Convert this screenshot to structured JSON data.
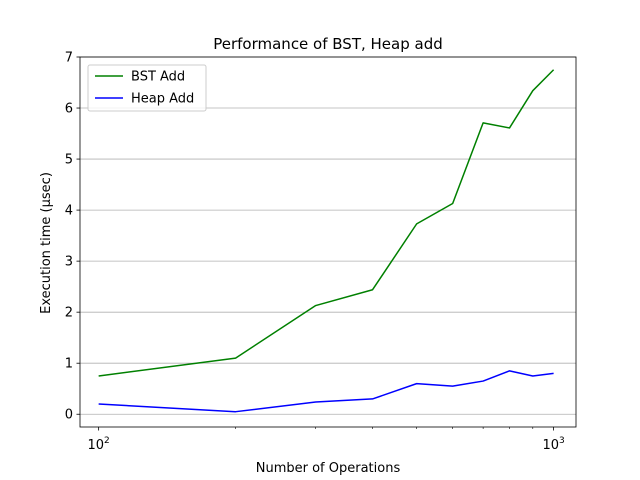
{
  "chart_data": {
    "type": "line",
    "title": "Performance of BST, Heap add",
    "xlabel": "Number of Operations",
    "ylabel": "Execution time (μsec)",
    "xscale": "log",
    "xlim": [
      91,
      1120
    ],
    "ylim": [
      -0.25,
      7.0
    ],
    "x": [
      100,
      200,
      300,
      400,
      500,
      600,
      700,
      800,
      900,
      1000
    ],
    "series": [
      {
        "name": "BST Add",
        "color": "#008000",
        "values": [
          0.75,
          1.1,
          2.13,
          2.44,
          3.73,
          4.13,
          5.71,
          5.61,
          6.34,
          6.75
        ]
      },
      {
        "name": "Heap Add",
        "color": "#0000ff",
        "values": [
          0.2,
          0.05,
          0.24,
          0.3,
          0.6,
          0.55,
          0.65,
          0.85,
          0.75,
          0.8
        ]
      }
    ],
    "yticks": [
      0,
      1,
      2,
      3,
      4,
      5,
      6,
      7
    ],
    "xticks": [
      {
        "value": 100,
        "base": "10",
        "exp": "2"
      },
      {
        "value": 1000,
        "base": "10",
        "exp": "3"
      }
    ],
    "grid": "y-major",
    "legend": "upper-left"
  }
}
